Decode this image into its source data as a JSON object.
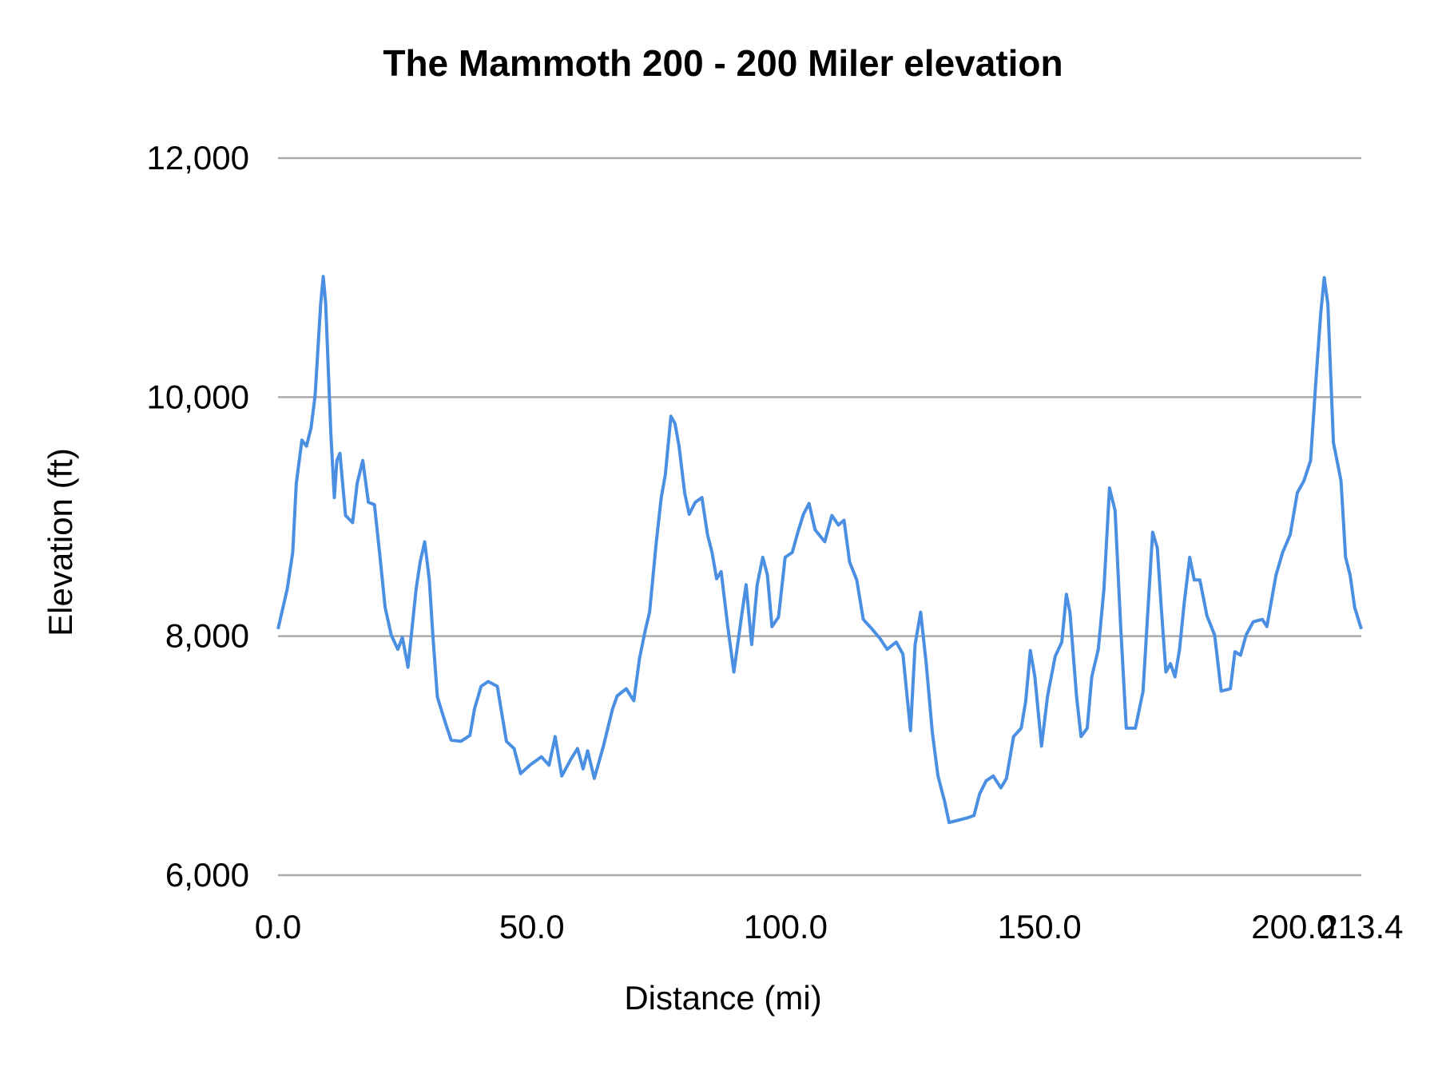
{
  "chart_data": {
    "type": "line",
    "title": "The Mammoth 200 - 200 Miler elevation",
    "xlabel": "Distance (mi)",
    "ylabel": "Elevation (ft)",
    "xlim": [
      0,
      213.4
    ],
    "ylim": [
      6000,
      12000
    ],
    "x_ticks": [
      "0.0",
      "50.0",
      "100.0",
      "150.0",
      "200.0",
      "213.4"
    ],
    "x_tick_values": [
      0,
      50,
      100,
      150,
      200,
      213.4
    ],
    "y_ticks": [
      "12,000",
      "10,000",
      "8,000",
      "6,000"
    ],
    "y_tick_values": [
      12000,
      10000,
      8000,
      6000
    ],
    "grid": "horizontal",
    "legend": "none",
    "line_color": "#4a8fe2",
    "grid_color": "#aaaaaa",
    "series": [
      {
        "x": [
          0,
          1.8,
          2.9,
          3.6,
          4.7,
          5.6,
          6.5,
          7.3,
          8.4,
          8.9,
          9.4,
          10.4,
          11.1,
          11.6,
          12.2,
          13.3,
          14.7,
          15.6,
          16.7,
          17.8,
          19.0,
          20.0,
          21.1,
          22.3,
          23.6,
          24.5,
          25.6,
          27.2,
          28.0,
          28.9,
          29.8,
          30.5,
          31.4,
          33.0,
          34.1,
          36.0,
          37.8,
          38.7,
          40.0,
          41.4,
          43.2,
          44.1,
          45.0,
          46.5,
          47.8,
          49.6,
          51.9,
          53.4,
          54.6,
          55.9,
          57.7,
          59.0,
          60.1,
          61.0,
          62.3,
          64.1,
          65.9,
          66.8,
          68.6,
          70.1,
          71.2,
          72.3,
          73.2,
          74.5,
          75.5,
          76.3,
          77.4,
          78.2,
          79.0,
          80.1,
          81.0,
          82.2,
          83.5,
          84.6,
          85.5,
          86.4,
          87.3,
          88.6,
          89.8,
          91.3,
          92.2,
          93.3,
          94.4,
          95.5,
          96.4,
          97.3,
          98.6,
          99.9,
          101.3,
          102.4,
          103.5,
          104.6,
          105.8,
          107.7,
          109.1,
          110.4,
          111.5,
          112.6,
          114.0,
          115.3,
          116.8,
          118.6,
          120.0,
          121.8,
          123.1,
          124.6,
          125.5,
          126.6,
          127.7,
          128.9,
          130.0,
          131.3,
          132.2,
          134.0,
          135.8,
          137.1,
          138.2,
          139.5,
          140.9,
          142.4,
          143.5,
          144.9,
          146.4,
          147.3,
          148.2,
          149.1,
          150.4,
          151.6,
          153.1,
          154.4,
          155.3,
          156.0,
          157.3,
          158.2,
          159.4,
          160.3,
          161.6,
          162.7,
          163.8,
          164.9,
          166.0,
          167.1,
          168.9,
          170.4,
          171.4,
          172.3,
          173.2,
          174.0,
          174.9,
          175.8,
          176.7,
          177.6,
          178.5,
          179.6,
          180.5,
          181.6,
          183.0,
          184.5,
          185.8,
          187.6,
          188.5,
          189.6,
          190.7,
          192.1,
          193.9,
          194.8,
          196.6,
          197.9,
          199.4,
          200.8,
          202.1,
          203.4,
          204.5,
          205.4,
          206.1,
          206.8,
          207.9,
          209.4,
          210.3,
          211.2,
          212.1,
          213.4
        ],
        "y": [
          8060,
          8390,
          8700,
          9280,
          9640,
          9590,
          9740,
          10010,
          10780,
          11010,
          10780,
          9700,
          9160,
          9470,
          9530,
          9010,
          8950,
          9280,
          9470,
          9120,
          9100,
          8700,
          8240,
          8010,
          7890,
          7990,
          7740,
          8390,
          8620,
          8790,
          8470,
          8010,
          7490,
          7270,
          7130,
          7120,
          7170,
          7390,
          7580,
          7620,
          7580,
          7350,
          7120,
          7060,
          6850,
          6920,
          6990,
          6920,
          7160,
          6830,
          6970,
          7060,
          6890,
          7040,
          6810,
          7080,
          7390,
          7500,
          7560,
          7460,
          7810,
          8040,
          8200,
          8780,
          9160,
          9350,
          9840,
          9780,
          9590,
          9200,
          9020,
          9120,
          9160,
          8850,
          8700,
          8480,
          8540,
          8080,
          7700,
          8160,
          8430,
          7930,
          8430,
          8660,
          8510,
          8080,
          8160,
          8660,
          8700,
          8870,
          9020,
          9110,
          8890,
          8790,
          9010,
          8930,
          8970,
          8620,
          8470,
          8140,
          8070,
          7980,
          7890,
          7950,
          7850,
          7210,
          7930,
          8200,
          7770,
          7190,
          6830,
          6620,
          6440,
          6460,
          6480,
          6500,
          6680,
          6790,
          6830,
          6730,
          6810,
          7160,
          7230,
          7460,
          7880,
          7660,
          7080,
          7500,
          7830,
          7950,
          8350,
          8200,
          7500,
          7160,
          7230,
          7660,
          7890,
          8390,
          9240,
          9050,
          8080,
          7230,
          7230,
          7540,
          8240,
          8870,
          8740,
          8240,
          7700,
          7770,
          7660,
          7890,
          8270,
          8660,
          8470,
          8470,
          8170,
          8010,
          7540,
          7560,
          7870,
          7840,
          8010,
          8120,
          8140,
          8080,
          8510,
          8700,
          8850,
          9200,
          9300,
          9470,
          10160,
          10700,
          11000,
          10780,
          9620,
          9300,
          8660,
          8510,
          8240,
          8060
        ]
      }
    ]
  }
}
